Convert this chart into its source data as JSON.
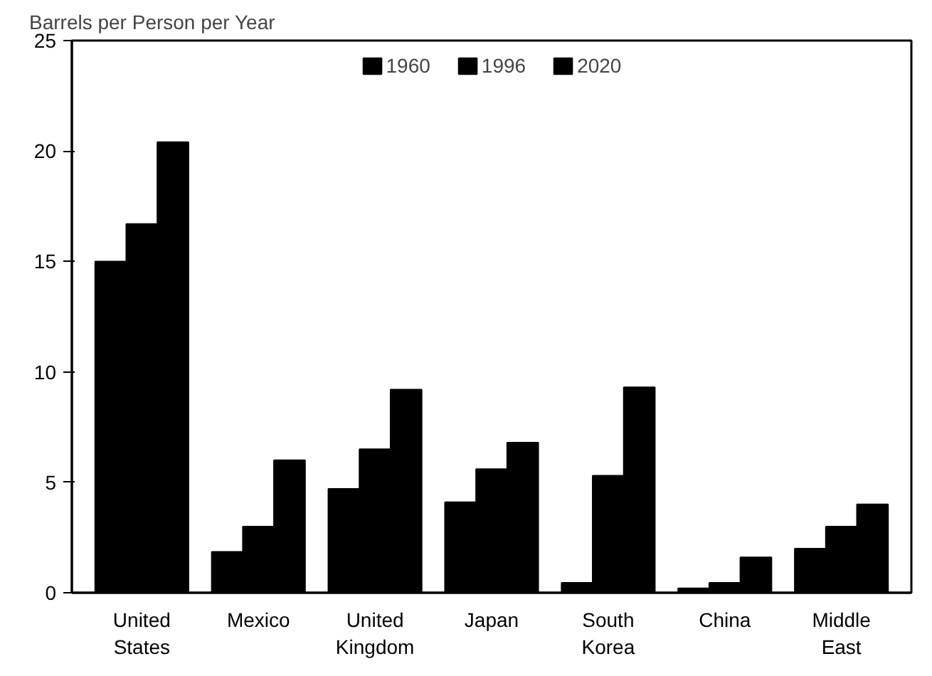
{
  "chart_data": {
    "type": "bar",
    "ylabel": "Barrels per Person per Year",
    "categories": [
      "United States",
      "Mexico",
      "United Kingdom",
      "Japan",
      "South Korea",
      "China",
      "Middle East"
    ],
    "series": [
      {
        "name": "1960",
        "color": "#000000",
        "values": [
          15.0,
          1.85,
          4.7,
          4.1,
          0.45,
          0.2,
          2.0
        ]
      },
      {
        "name": "1996",
        "color": "#000000",
        "values": [
          16.7,
          3.0,
          6.5,
          5.6,
          5.3,
          0.45,
          3.0
        ]
      },
      {
        "name": "2020",
        "color": "#000000",
        "values": [
          20.4,
          6.0,
          9.2,
          6.8,
          9.3,
          1.6,
          4.0
        ]
      }
    ],
    "ylim": [
      0,
      25
    ],
    "yticks": [
      0,
      5,
      10,
      15,
      20,
      25
    ],
    "grid": false,
    "legend": "top"
  }
}
